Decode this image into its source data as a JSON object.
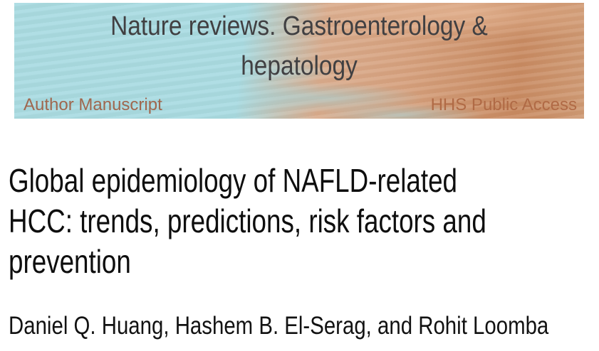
{
  "banner": {
    "journal_title": "Nature reviews. Gastroenterology & hepatology",
    "journal_title_line1": "Nature reviews. Gastroenterology &",
    "journal_title_line2": "hepatology",
    "left_label": "Author Manuscript",
    "right_label": "HHS Public Access",
    "colors": {
      "teal_background": "#a8dbe2",
      "orange_background": "#d6a17e",
      "orange_deep": "#c88a61",
      "journal_title_text": "#414042",
      "left_label_text": "#9f674e",
      "right_label_text": "#b06a45"
    }
  },
  "article": {
    "title": "Global epidemiology of NAFLD-related HCC: trends, predictions, risk factors and prevention",
    "title_lines": [
      "Global epidemiology of NAFLD-related",
      "HCC: trends, predictions, risk factors and",
      "prevention"
    ],
    "title_color": "#0e0e0e",
    "authors": "Daniel Q. Huang, Hashem B. El-Serag, and Rohit Loomba"
  }
}
